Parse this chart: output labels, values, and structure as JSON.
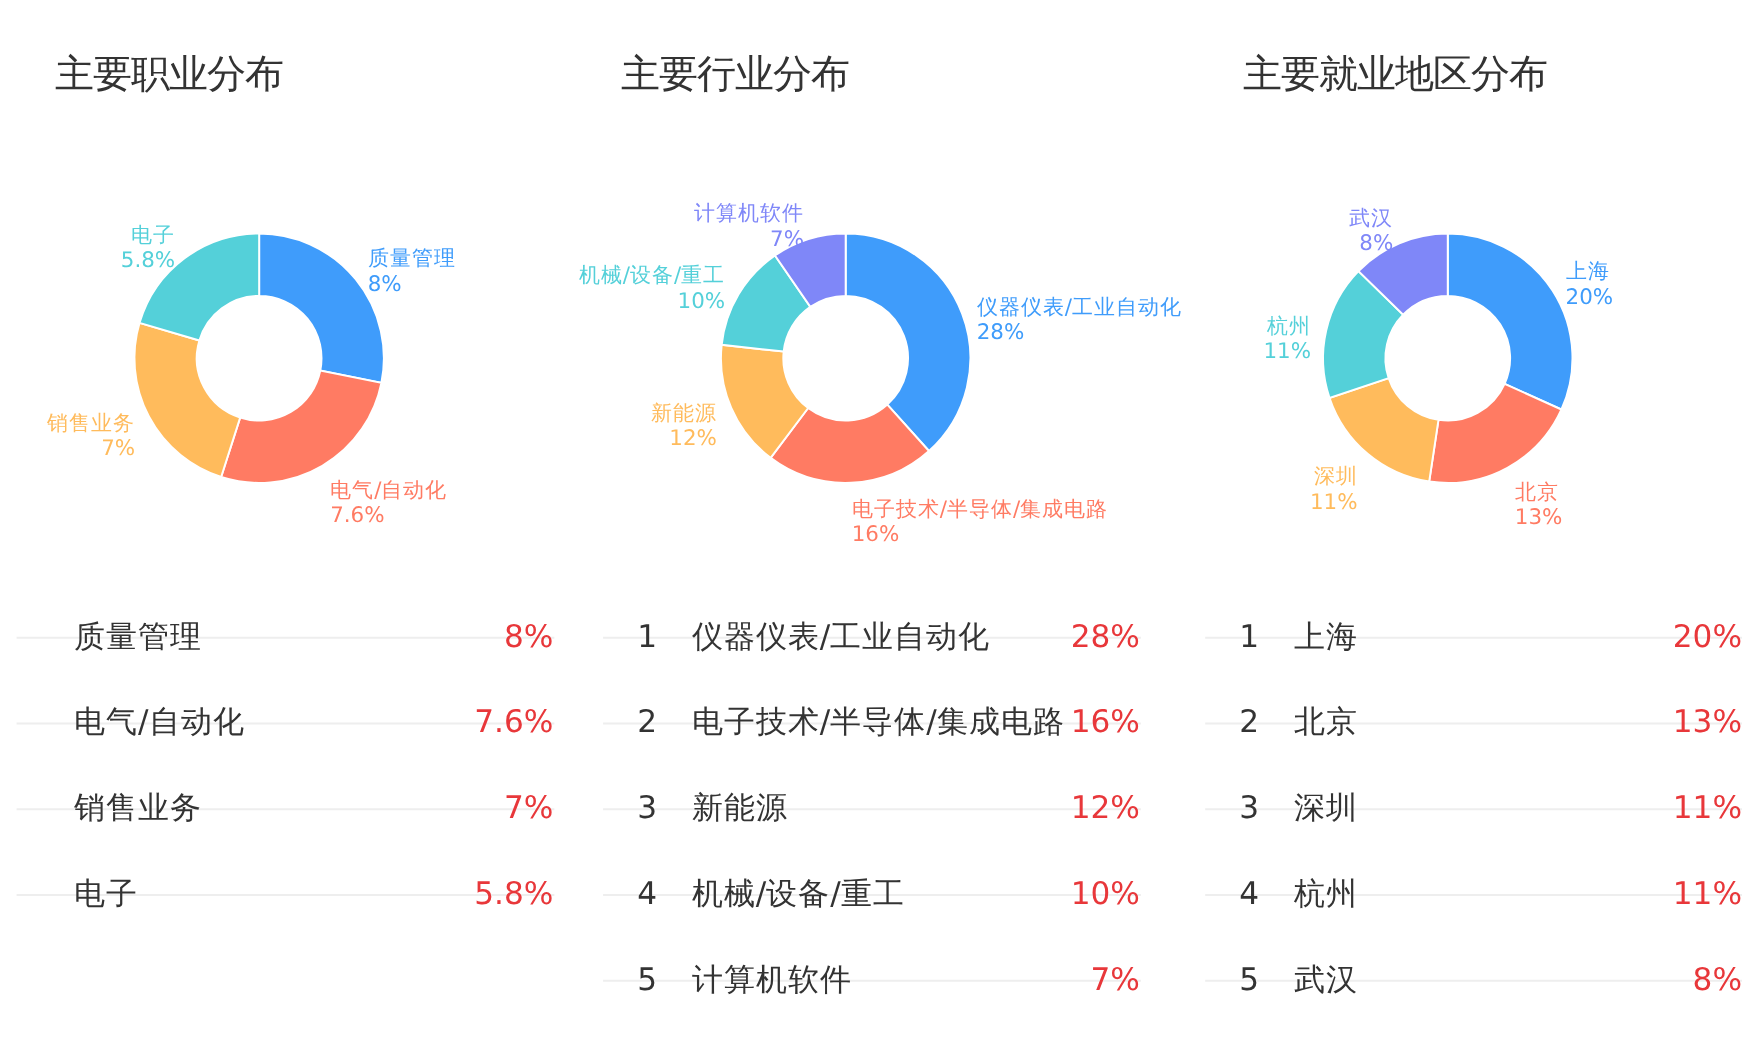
{
  "chart_data": [
    {
      "type": "donut",
      "title": "主要职业分布",
      "categories": [
        "质量管理",
        "电气/自动化",
        "销售业务",
        "电子"
      ],
      "values": [
        8,
        7.6,
        7,
        5.8
      ],
      "colors": [
        "#3f9cfb",
        "#ff7b63",
        "#ffbb5c",
        "#54d0d9"
      ],
      "value_labels": [
        "8%",
        "7.6%",
        "7%",
        "5.8%"
      ]
    },
    {
      "type": "donut",
      "title": "主要行业分布",
      "categories": [
        "仪器仪表/工业自动化",
        "电子技术/半导体/集成电路",
        "新能源",
        "机械/设备/重工",
        "计算机软件"
      ],
      "values": [
        28,
        16,
        12,
        10,
        7
      ],
      "colors": [
        "#3f9cfb",
        "#ff7b63",
        "#ffbb5c",
        "#54d0d9",
        "#7f87f8"
      ],
      "value_labels": [
        "28%",
        "16%",
        "12%",
        "10%",
        "7%"
      ],
      "annotations": [
        "1",
        "2",
        "3",
        "4",
        "5"
      ]
    },
    {
      "type": "donut",
      "title": "主要就业地区分布",
      "categories": [
        "上海",
        "北京",
        "深圳",
        "杭州",
        "武汉"
      ],
      "values": [
        20,
        13,
        11,
        11,
        8
      ],
      "colors": [
        "#3f9cfb",
        "#ff7b63",
        "#ffbb5c",
        "#54d0d9",
        "#7f87f8"
      ],
      "value_labels": [
        "20%",
        "13%",
        "11%",
        "11%",
        "8%"
      ],
      "annotations": [
        "1",
        "2",
        "3",
        "4",
        "5"
      ]
    }
  ]
}
